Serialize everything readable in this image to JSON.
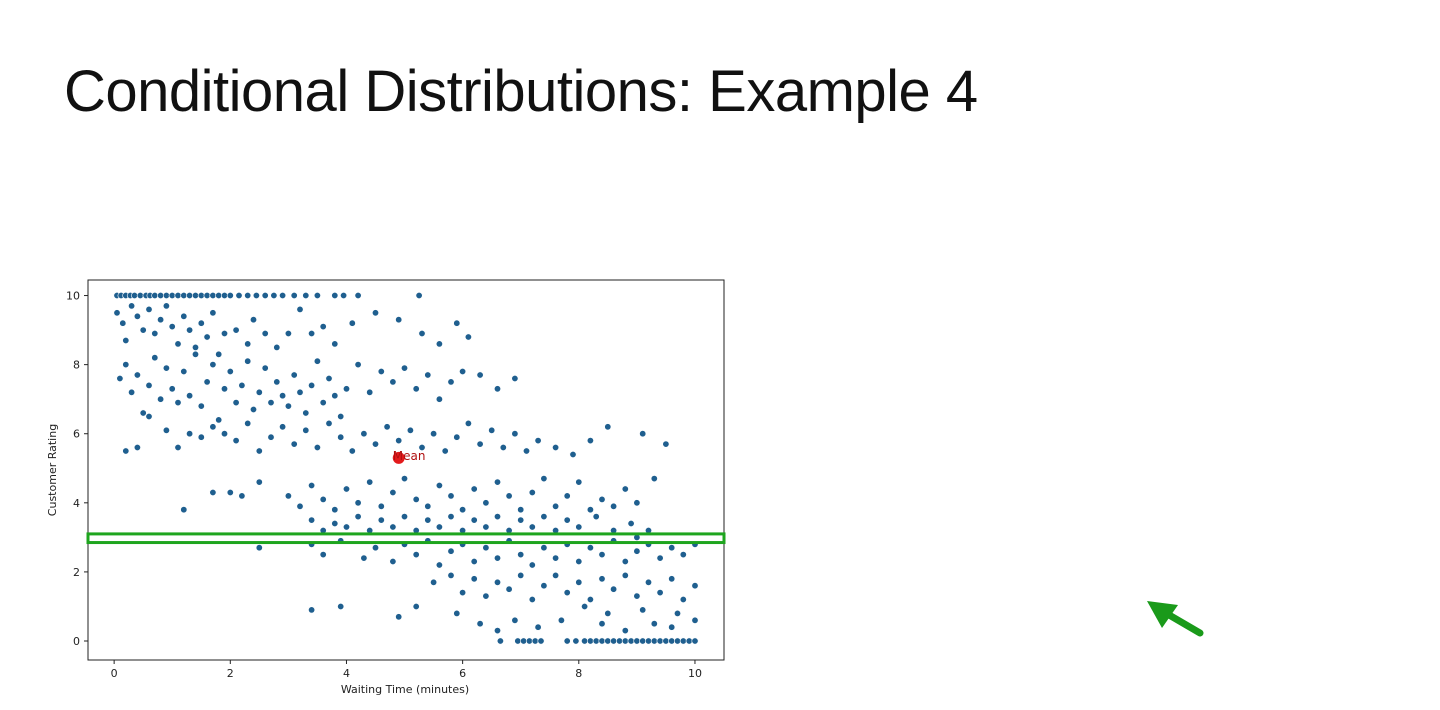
{
  "slide": {
    "title": "Conditional Distributions: Example 4"
  },
  "colors": {
    "points": "#1f5f8f",
    "mean": "#e31a1c",
    "highlight": "#1ea51e",
    "arrow": "#1a9a1a"
  },
  "annotation": {
    "highlight_band_y": [
      2.85,
      3.1
    ],
    "highlight_band_x": [
      -0.45,
      10.5
    ],
    "arrow_icon": "arrow-up-left-icon"
  },
  "chart_data": {
    "type": "scatter",
    "xlabel": "Waiting Time (minutes)",
    "ylabel": "Customer Rating",
    "xlim": [
      -0.45,
      10.5
    ],
    "ylim": [
      -0.55,
      10.45
    ],
    "xticks": [
      0,
      2,
      4,
      6,
      8,
      10
    ],
    "yticks": [
      0,
      2,
      4,
      6,
      8,
      10
    ],
    "grid": false,
    "legend": "none",
    "mean_point": {
      "label": "Mean",
      "x": 4.9,
      "y": 5.3
    },
    "points": [
      [
        0.05,
        10
      ],
      [
        0.12,
        10
      ],
      [
        0.2,
        10
      ],
      [
        0.28,
        10
      ],
      [
        0.35,
        10
      ],
      [
        0.45,
        10
      ],
      [
        0.55,
        10
      ],
      [
        0.62,
        10
      ],
      [
        0.7,
        10
      ],
      [
        0.8,
        10
      ],
      [
        0.9,
        10
      ],
      [
        1.0,
        10
      ],
      [
        1.1,
        10
      ],
      [
        1.2,
        10
      ],
      [
        1.3,
        10
      ],
      [
        1.4,
        10
      ],
      [
        1.5,
        10
      ],
      [
        1.6,
        10
      ],
      [
        1.7,
        10
      ],
      [
        1.8,
        10
      ],
      [
        1.9,
        10
      ],
      [
        2.0,
        10
      ],
      [
        2.15,
        10
      ],
      [
        2.3,
        10
      ],
      [
        2.45,
        10
      ],
      [
        2.6,
        10
      ],
      [
        2.75,
        10
      ],
      [
        2.9,
        10
      ],
      [
        3.1,
        10
      ],
      [
        3.3,
        10
      ],
      [
        3.5,
        10
      ],
      [
        3.8,
        10
      ],
      [
        3.95,
        10
      ],
      [
        4.2,
        10
      ],
      [
        5.25,
        10
      ],
      [
        0.05,
        9.5
      ],
      [
        0.15,
        9.2
      ],
      [
        0.2,
        8.7
      ],
      [
        0.3,
        9.7
      ],
      [
        0.4,
        9.4
      ],
      [
        0.5,
        9.0
      ],
      [
        0.6,
        9.6
      ],
      [
        0.7,
        8.9
      ],
      [
        0.8,
        9.3
      ],
      [
        0.9,
        9.7
      ],
      [
        1.0,
        9.1
      ],
      [
        1.1,
        8.6
      ],
      [
        1.2,
        9.4
      ],
      [
        1.3,
        9.0
      ],
      [
        1.4,
        8.5
      ],
      [
        1.5,
        9.2
      ],
      [
        1.6,
        8.8
      ],
      [
        1.7,
        9.5
      ],
      [
        1.8,
        8.3
      ],
      [
        1.9,
        8.9
      ],
      [
        2.1,
        9.0
      ],
      [
        2.3,
        8.6
      ],
      [
        2.4,
        9.3
      ],
      [
        2.6,
        8.9
      ],
      [
        2.8,
        8.5
      ],
      [
        3.0,
        8.9
      ],
      [
        3.2,
        9.6
      ],
      [
        3.4,
        8.9
      ],
      [
        3.6,
        9.1
      ],
      [
        3.8,
        8.6
      ],
      [
        4.1,
        9.2
      ],
      [
        4.5,
        9.5
      ],
      [
        4.9,
        9.3
      ],
      [
        5.3,
        8.9
      ],
      [
        5.6,
        8.6
      ],
      [
        5.9,
        9.2
      ],
      [
        6.1,
        8.8
      ],
      [
        0.1,
        7.6
      ],
      [
        0.2,
        8.0
      ],
      [
        0.3,
        7.2
      ],
      [
        0.4,
        7.7
      ],
      [
        0.5,
        6.6
      ],
      [
        0.6,
        7.4
      ],
      [
        0.7,
        8.2
      ],
      [
        0.8,
        7.0
      ],
      [
        0.9,
        7.9
      ],
      [
        1.0,
        7.3
      ],
      [
        1.1,
        6.9
      ],
      [
        1.2,
        7.8
      ],
      [
        1.3,
        7.1
      ],
      [
        1.4,
        8.3
      ],
      [
        1.5,
        6.8
      ],
      [
        1.6,
        7.5
      ],
      [
        1.7,
        8.0
      ],
      [
        1.8,
        6.4
      ],
      [
        1.9,
        7.3
      ],
      [
        2.0,
        7.8
      ],
      [
        2.1,
        6.9
      ],
      [
        2.2,
        7.4
      ],
      [
        2.3,
        8.1
      ],
      [
        2.4,
        6.7
      ],
      [
        2.5,
        7.2
      ],
      [
        2.6,
        7.9
      ],
      [
        2.7,
        6.9
      ],
      [
        2.8,
        7.5
      ],
      [
        2.9,
        7.1
      ],
      [
        3.0,
        6.8
      ],
      [
        3.1,
        7.7
      ],
      [
        3.2,
        7.2
      ],
      [
        3.3,
        6.6
      ],
      [
        3.4,
        7.4
      ],
      [
        3.5,
        8.1
      ],
      [
        3.6,
        6.9
      ],
      [
        3.7,
        7.6
      ],
      [
        3.8,
        7.1
      ],
      [
        3.9,
        6.5
      ],
      [
        4.0,
        7.3
      ],
      [
        4.2,
        8.0
      ],
      [
        4.4,
        7.2
      ],
      [
        4.6,
        7.8
      ],
      [
        4.8,
        7.5
      ],
      [
        5.0,
        7.9
      ],
      [
        5.2,
        7.3
      ],
      [
        5.4,
        7.7
      ],
      [
        5.6,
        7.0
      ],
      [
        5.8,
        7.5
      ],
      [
        6.0,
        7.8
      ],
      [
        6.3,
        7.7
      ],
      [
        6.6,
        7.3
      ],
      [
        6.9,
        7.6
      ],
      [
        0.2,
        5.5
      ],
      [
        0.4,
        5.6
      ],
      [
        0.6,
        6.5
      ],
      [
        0.9,
        6.1
      ],
      [
        1.1,
        5.6
      ],
      [
        1.3,
        6.0
      ],
      [
        1.5,
        5.9
      ],
      [
        1.7,
        6.2
      ],
      [
        1.9,
        6.0
      ],
      [
        2.1,
        5.8
      ],
      [
        2.3,
        6.3
      ],
      [
        2.5,
        5.5
      ],
      [
        2.7,
        5.9
      ],
      [
        2.9,
        6.2
      ],
      [
        3.1,
        5.7
      ],
      [
        3.3,
        6.1
      ],
      [
        3.5,
        5.6
      ],
      [
        3.7,
        6.3
      ],
      [
        3.9,
        5.9
      ],
      [
        4.1,
        5.5
      ],
      [
        4.3,
        6.0
      ],
      [
        4.5,
        5.7
      ],
      [
        4.7,
        6.2
      ],
      [
        4.9,
        5.8
      ],
      [
        5.1,
        6.1
      ],
      [
        5.3,
        5.6
      ],
      [
        5.5,
        6.0
      ],
      [
        5.7,
        5.5
      ],
      [
        5.9,
        5.9
      ],
      [
        6.1,
        6.3
      ],
      [
        6.3,
        5.7
      ],
      [
        6.5,
        6.1
      ],
      [
        6.7,
        5.6
      ],
      [
        6.9,
        6.0
      ],
      [
        7.1,
        5.5
      ],
      [
        7.3,
        5.8
      ],
      [
        7.6,
        5.6
      ],
      [
        7.9,
        5.4
      ],
      [
        8.2,
        5.8
      ],
      [
        8.5,
        6.2
      ],
      [
        9.1,
        6.0
      ],
      [
        9.5,
        5.7
      ],
      [
        2.0,
        4.3
      ],
      [
        2.5,
        4.6
      ],
      [
        3.0,
        4.2
      ],
      [
        3.2,
        3.9
      ],
      [
        3.4,
        4.5
      ],
      [
        3.6,
        4.1
      ],
      [
        3.8,
        3.8
      ],
      [
        4.0,
        4.4
      ],
      [
        4.2,
        4.0
      ],
      [
        4.4,
        4.6
      ],
      [
        4.6,
        3.9
      ],
      [
        4.8,
        4.3
      ],
      [
        5.0,
        4.7
      ],
      [
        5.2,
        4.1
      ],
      [
        5.4,
        3.9
      ],
      [
        5.6,
        4.5
      ],
      [
        5.8,
        4.2
      ],
      [
        6.0,
        3.8
      ],
      [
        6.2,
        4.4
      ],
      [
        6.4,
        4.0
      ],
      [
        6.6,
        4.6
      ],
      [
        6.8,
        4.2
      ],
      [
        7.0,
        3.8
      ],
      [
        7.2,
        4.3
      ],
      [
        7.4,
        4.7
      ],
      [
        7.6,
        3.9
      ],
      [
        7.8,
        4.2
      ],
      [
        8.0,
        4.6
      ],
      [
        8.2,
        3.8
      ],
      [
        8.4,
        4.1
      ],
      [
        8.6,
        3.9
      ],
      [
        8.8,
        4.4
      ],
      [
        9.0,
        4.0
      ],
      [
        9.3,
        4.7
      ],
      [
        1.2,
        3.8
      ],
      [
        1.7,
        4.3
      ],
      [
        2.2,
        4.2
      ],
      [
        3.4,
        3.5
      ],
      [
        3.6,
        3.2
      ],
      [
        3.8,
        3.4
      ],
      [
        4.0,
        3.3
      ],
      [
        4.2,
        3.6
      ],
      [
        4.4,
        3.2
      ],
      [
        4.6,
        3.5
      ],
      [
        4.8,
        3.3
      ],
      [
        5.0,
        3.6
      ],
      [
        5.2,
        3.2
      ],
      [
        5.4,
        3.5
      ],
      [
        5.6,
        3.3
      ],
      [
        5.8,
        3.6
      ],
      [
        6.0,
        3.2
      ],
      [
        6.2,
        3.5
      ],
      [
        6.4,
        3.3
      ],
      [
        6.6,
        3.6
      ],
      [
        6.8,
        3.2
      ],
      [
        7.0,
        3.5
      ],
      [
        7.2,
        3.3
      ],
      [
        7.4,
        3.6
      ],
      [
        7.6,
        3.2
      ],
      [
        7.8,
        3.5
      ],
      [
        8.0,
        3.3
      ],
      [
        8.3,
        3.6
      ],
      [
        8.6,
        3.2
      ],
      [
        8.9,
        3.4
      ],
      [
        9.0,
        3.0
      ],
      [
        9.2,
        3.2
      ],
      [
        2.5,
        2.7
      ],
      [
        3.4,
        2.8
      ],
      [
        3.6,
        2.5
      ],
      [
        3.9,
        2.9
      ],
      [
        4.3,
        2.4
      ],
      [
        4.5,
        2.7
      ],
      [
        4.8,
        2.3
      ],
      [
        5.0,
        2.8
      ],
      [
        5.2,
        2.5
      ],
      [
        5.4,
        2.9
      ],
      [
        5.6,
        2.2
      ],
      [
        5.8,
        2.6
      ],
      [
        6.0,
        2.8
      ],
      [
        6.2,
        2.3
      ],
      [
        6.4,
        2.7
      ],
      [
        6.6,
        2.4
      ],
      [
        6.8,
        2.9
      ],
      [
        7.0,
        2.5
      ],
      [
        7.2,
        2.2
      ],
      [
        7.4,
        2.7
      ],
      [
        7.6,
        2.4
      ],
      [
        7.8,
        2.8
      ],
      [
        8.0,
        2.3
      ],
      [
        8.2,
        2.7
      ],
      [
        8.4,
        2.5
      ],
      [
        8.6,
        2.9
      ],
      [
        8.8,
        2.3
      ],
      [
        9.0,
        2.6
      ],
      [
        9.2,
        2.8
      ],
      [
        9.4,
        2.4
      ],
      [
        9.6,
        2.7
      ],
      [
        9.8,
        2.5
      ],
      [
        10.0,
        2.8
      ],
      [
        5.5,
        1.7
      ],
      [
        5.8,
        1.9
      ],
      [
        6.0,
        1.4
      ],
      [
        6.2,
        1.8
      ],
      [
        6.4,
        1.3
      ],
      [
        6.6,
        1.7
      ],
      [
        6.8,
        1.5
      ],
      [
        7.0,
        1.9
      ],
      [
        7.2,
        1.2
      ],
      [
        7.4,
        1.6
      ],
      [
        7.6,
        1.9
      ],
      [
        7.8,
        1.4
      ],
      [
        8.0,
        1.7
      ],
      [
        8.2,
        1.2
      ],
      [
        8.4,
        1.8
      ],
      [
        8.6,
        1.5
      ],
      [
        8.8,
        1.9
      ],
      [
        9.0,
        1.3
      ],
      [
        9.2,
        1.7
      ],
      [
        9.4,
        1.4
      ],
      [
        9.6,
        1.8
      ],
      [
        9.8,
        1.2
      ],
      [
        10.0,
        1.6
      ],
      [
        8.1,
        1.0
      ],
      [
        8.5,
        0.8
      ],
      [
        9.1,
        0.9
      ],
      [
        9.7,
        0.8
      ],
      [
        3.4,
        0.9
      ],
      [
        3.9,
        1.0
      ],
      [
        4.9,
        0.7
      ],
      [
        5.2,
        1.0
      ],
      [
        5.9,
        0.8
      ],
      [
        6.3,
        0.5
      ],
      [
        6.6,
        0.3
      ],
      [
        6.9,
        0.6
      ],
      [
        7.3,
        0.4
      ],
      [
        7.7,
        0.6
      ],
      [
        8.4,
        0.5
      ],
      [
        8.8,
        0.3
      ],
      [
        9.3,
        0.5
      ],
      [
        9.6,
        0.4
      ],
      [
        10.0,
        0.6
      ],
      [
        6.65,
        0
      ],
      [
        6.95,
        0
      ],
      [
        7.05,
        0
      ],
      [
        7.15,
        0
      ],
      [
        7.25,
        0
      ],
      [
        7.35,
        0
      ],
      [
        7.8,
        0
      ],
      [
        7.95,
        0
      ],
      [
        8.1,
        0
      ],
      [
        8.2,
        0
      ],
      [
        8.3,
        0
      ],
      [
        8.4,
        0
      ],
      [
        8.5,
        0
      ],
      [
        8.6,
        0
      ],
      [
        8.7,
        0
      ],
      [
        8.8,
        0
      ],
      [
        8.9,
        0
      ],
      [
        9.0,
        0
      ],
      [
        9.1,
        0
      ],
      [
        9.2,
        0
      ],
      [
        9.3,
        0
      ],
      [
        9.4,
        0
      ],
      [
        9.5,
        0
      ],
      [
        9.6,
        0
      ],
      [
        9.7,
        0
      ],
      [
        9.8,
        0
      ],
      [
        9.9,
        0
      ],
      [
        10.0,
        0
      ]
    ]
  }
}
